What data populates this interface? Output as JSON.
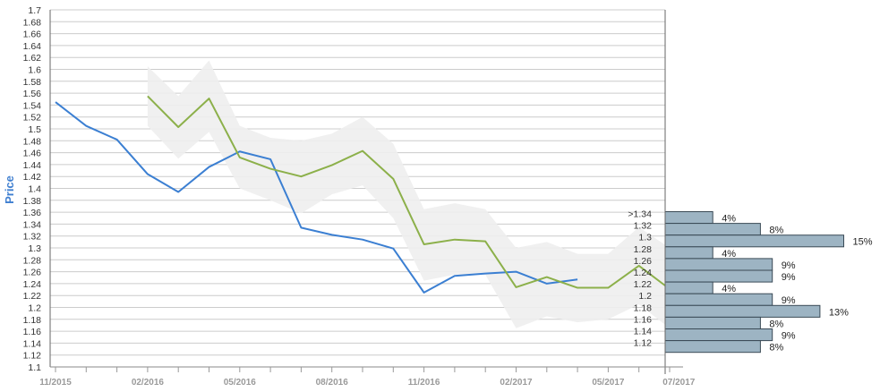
{
  "chart_data": {
    "type": "line",
    "ylabel": "Price",
    "ylim": [
      1.1,
      1.7
    ],
    "y_ticks": [
      "1.1",
      "1.12",
      "1.14",
      "1.16",
      "1.18",
      "1.2",
      "1.22",
      "1.24",
      "1.26",
      "1.28",
      "1.3",
      "1.32",
      "1.34",
      "1.36",
      "1.38",
      "1.4",
      "1.42",
      "1.44",
      "1.46",
      "1.48",
      "1.5",
      "1.52",
      "1.54",
      "1.56",
      "1.58",
      "1.6",
      "1.62",
      "1.64",
      "1.66",
      "1.68",
      "1.7"
    ],
    "x_tick_labels": [
      "11/2015",
      "02/2016",
      "05/2016",
      "08/2016",
      "11/2016",
      "02/2017",
      "05/2017",
      "07/2017"
    ],
    "grid": true,
    "colors": {
      "actual": "#3b7fd2",
      "forecast": "#8cb04a",
      "band": "#eeeeee",
      "bars": "#9db4c3",
      "bar_border": "#3a4a56",
      "grid": "#cccccc"
    },
    "series": [
      {
        "key": "actual",
        "x": [
          0,
          1,
          2,
          3,
          4,
          5,
          6,
          7,
          8,
          9,
          10,
          11,
          12,
          13,
          14,
          15,
          16,
          17
        ],
        "values": [
          1.545,
          1.505,
          1.482,
          1.424,
          1.394,
          1.436,
          1.462,
          1.449,
          1.334,
          1.322,
          1.314,
          1.299,
          1.225,
          1.253,
          1.257,
          1.26,
          1.24,
          1.247
        ]
      },
      {
        "key": "forecast",
        "x": [
          3,
          4,
          5,
          6,
          7,
          8,
          9,
          10,
          11,
          12,
          13,
          14,
          15,
          16,
          17,
          18,
          19,
          20
        ],
        "values": [
          1.555,
          1.503,
          1.551,
          1.452,
          1.433,
          1.42,
          1.439,
          1.463,
          1.416,
          1.306,
          1.314,
          1.311,
          1.234,
          1.251,
          1.233,
          1.233,
          1.27,
          1.231
        ],
        "band_upper": [
          1.605,
          1.555,
          1.615,
          1.505,
          1.485,
          1.48,
          1.492,
          1.52,
          1.475,
          1.365,
          1.375,
          1.365,
          1.3,
          1.31,
          1.29,
          1.29,
          1.335,
          1.3
        ],
        "band_lower": [
          1.505,
          1.45,
          1.495,
          1.4,
          1.38,
          1.358,
          1.39,
          1.405,
          1.35,
          1.245,
          1.255,
          1.255,
          1.165,
          1.185,
          1.175,
          1.18,
          1.205,
          1.165
        ]
      }
    ],
    "distribution": {
      "type": "bar",
      "orientation": "horizontal",
      "categories": [
        ">1.34",
        "1.32",
        "1.3",
        "1.28",
        "1.26",
        "1.24",
        "1.22",
        "1.2",
        "1.18",
        "1.16",
        "1.14",
        "1.12"
      ],
      "values": [
        4,
        8,
        15,
        4,
        9,
        9,
        4,
        9,
        13,
        8,
        9,
        8
      ],
      "labels": [
        "4%",
        "8%",
        "15%",
        "4%",
        "9%",
        "9%",
        "4%",
        "9%",
        "13%",
        "8%",
        "9%",
        "8%"
      ]
    }
  }
}
